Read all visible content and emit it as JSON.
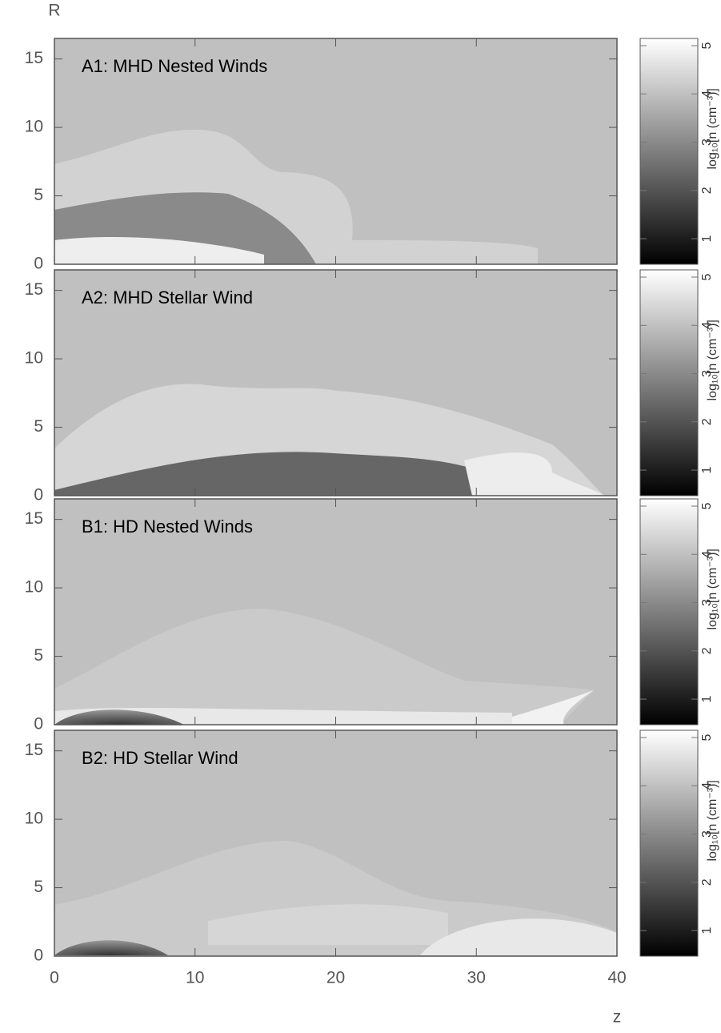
{
  "chart_data": [
    {
      "type": "image",
      "title": "A1: MHD Nested Winds",
      "ylabel": "R",
      "xlim": [
        0,
        40
      ],
      "ylim": [
        0,
        16.5
      ],
      "xticks": [
        0,
        10,
        20,
        30,
        40
      ],
      "yticks": [
        0,
        5,
        10,
        15
      ],
      "background": "#c0c0c0",
      "colorbar": {
        "lim": [
          0.47,
          5.15
        ],
        "ticks": [
          1,
          2,
          3,
          4,
          5
        ],
        "label": "log₁₀[n (cm⁻³)]"
      }
    },
    {
      "type": "image",
      "title": "A2: MHD Stellar Wind",
      "xlim": [
        0,
        40
      ],
      "ylim": [
        0,
        16.5
      ],
      "xticks": [
        0,
        10,
        20,
        30,
        40
      ],
      "yticks": [
        0,
        5,
        10,
        15
      ],
      "background": "#c0c0c0",
      "colorbar": {
        "lim": [
          0.47,
          5.15
        ],
        "ticks": [
          1,
          2,
          3,
          4,
          5
        ],
        "label": "log₁₀[n (cm⁻³)]"
      }
    },
    {
      "type": "image",
      "title": "B1: HD Nested Winds",
      "xlim": [
        0,
        40
      ],
      "ylim": [
        0,
        16.5
      ],
      "xticks": [
        0,
        10,
        20,
        30,
        40
      ],
      "yticks": [
        0,
        5,
        10,
        15
      ],
      "background": "#c0c0c0",
      "colorbar": {
        "lim": [
          0.47,
          5.15
        ],
        "ticks": [
          1,
          2,
          3,
          4,
          5
        ],
        "label": "log₁₀[n (cm⁻³)]"
      }
    },
    {
      "type": "image",
      "title": "B2: HD Stellar Wind",
      "xlabel": "z",
      "xlim": [
        0,
        40
      ],
      "ylim": [
        0,
        16.5
      ],
      "xticks": [
        0,
        10,
        20,
        30,
        40
      ],
      "yticks": [
        0,
        5,
        10,
        15
      ],
      "background": "#c0c0c0",
      "colorbar": {
        "lim": [
          0.47,
          5.15
        ],
        "ticks": [
          1,
          2,
          3,
          4,
          5
        ],
        "label": "log₁₀[n (cm⁻³)]"
      }
    }
  ]
}
